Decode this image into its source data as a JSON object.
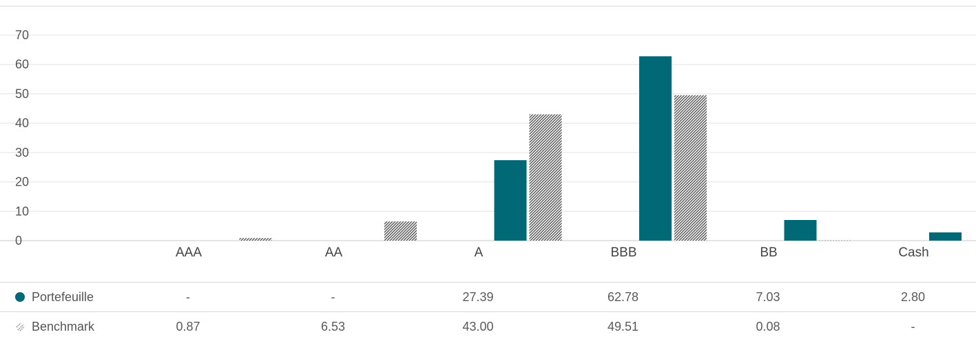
{
  "chart_data": {
    "type": "bar",
    "categories": [
      "AAA",
      "AA",
      "A",
      "BBB",
      "BB",
      "Cash"
    ],
    "series": [
      {
        "name": "Portefeuille",
        "values": [
          null,
          null,
          27.39,
          62.78,
          7.03,
          2.8
        ],
        "labels": [
          "-",
          "-",
          "27.39",
          "62.78",
          "7.03",
          "2.80"
        ],
        "color": "#006975",
        "pattern": "solid"
      },
      {
        "name": "Benchmark",
        "values": [
          0.87,
          6.53,
          43.0,
          49.51,
          0.08,
          null
        ],
        "labels": [
          "0.87",
          "6.53",
          "43.00",
          "49.51",
          "0.08",
          "-"
        ],
        "color": "#606060",
        "pattern": "hatched"
      }
    ],
    "yticks": [
      "0",
      "10",
      "20",
      "30",
      "40",
      "50",
      "60",
      "70"
    ],
    "ylim": [
      0,
      70
    ],
    "grid": true,
    "legend_position": "bottom-table"
  }
}
